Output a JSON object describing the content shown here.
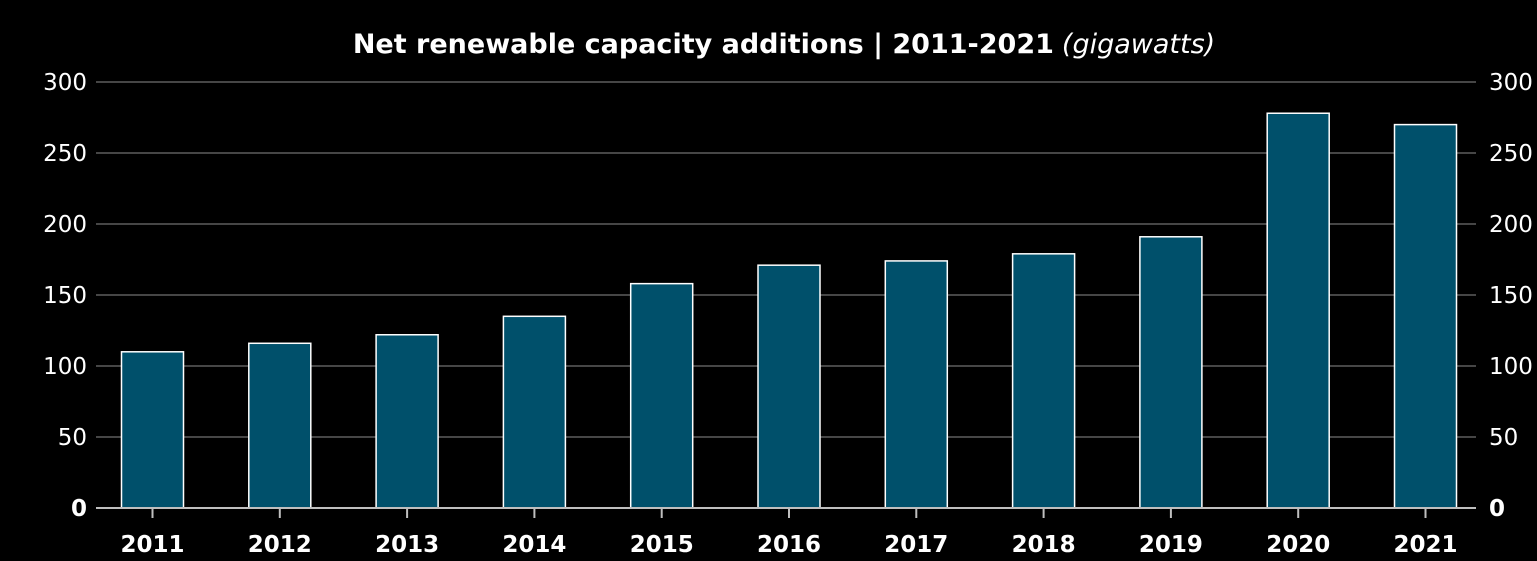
{
  "chart_data": {
    "type": "bar",
    "title": "Net renewable capacity additions | 2011-2021",
    "subtitle": "(gigawatts)",
    "xlabel": "",
    "ylabel": "",
    "categories": [
      "2011",
      "2012",
      "2013",
      "2014",
      "2015",
      "2016",
      "2017",
      "2018",
      "2019",
      "2020",
      "2021"
    ],
    "values": [
      110,
      116,
      122,
      135,
      158,
      171,
      174,
      179,
      191,
      278,
      270
    ],
    "ylim": [
      0,
      300
    ],
    "yticks": [
      "0",
      "50",
      "100",
      "150",
      "200",
      "250",
      "300"
    ],
    "grid": true,
    "legend": "none",
    "bar_color": "#00506b",
    "y_axis_both_sides": true
  }
}
